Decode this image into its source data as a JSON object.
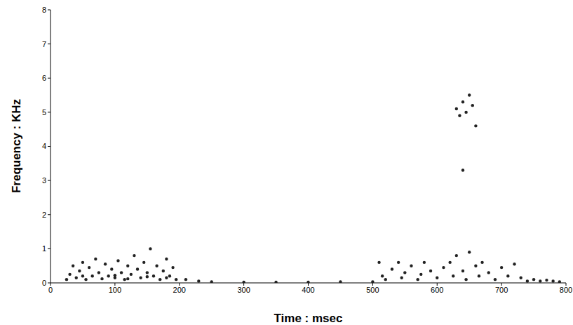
{
  "chart_data": {
    "type": "scatter",
    "x_label": "Time : msec",
    "y_label": "Frequency : KHz",
    "x": [
      25,
      30,
      35,
      40,
      45,
      50,
      55,
      60,
      65,
      70,
      75,
      80,
      85,
      90,
      95,
      100,
      105,
      110,
      115,
      120,
      125,
      130,
      135,
      140,
      145,
      150,
      155,
      160,
      165,
      170,
      175,
      180,
      185,
      190,
      195,
      210,
      230,
      50,
      100,
      150,
      120,
      180,
      250,
      300,
      350,
      400,
      450,
      500,
      510,
      515,
      520,
      530,
      540,
      545,
      550,
      560,
      570,
      575,
      580,
      590,
      600,
      610,
      620,
      625,
      630,
      640,
      645,
      650,
      660,
      665,
      670,
      680,
      690,
      700,
      710,
      720,
      730,
      740,
      750,
      760,
      770,
      780,
      790,
      630,
      640,
      645,
      650,
      655,
      660,
      635,
      640
    ],
    "values": [
      0.1,
      0.25,
      0.5,
      0.15,
      0.35,
      0.6,
      0.1,
      0.45,
      0.2,
      0.7,
      0.3,
      0.12,
      0.55,
      0.2,
      0.4,
      0.15,
      0.65,
      0.3,
      0.1,
      0.5,
      0.25,
      0.8,
      0.4,
      0.15,
      0.6,
      0.3,
      1.0,
      0.2,
      0.5,
      0.1,
      0.35,
      0.7,
      0.2,
      0.45,
      0.1,
      0.1,
      0.05,
      0.2,
      0.22,
      0.18,
      0.12,
      0.15,
      0.03,
      0.02,
      0.02,
      0.02,
      0.03,
      0.03,
      0.6,
      0.2,
      0.1,
      0.4,
      0.6,
      0.15,
      0.3,
      0.5,
      0.1,
      0.25,
      0.6,
      0.35,
      0.15,
      0.45,
      0.6,
      0.2,
      0.8,
      0.35,
      0.1,
      0.9,
      0.5,
      0.2,
      0.6,
      0.3,
      0.1,
      0.45,
      0.2,
      0.55,
      0.15,
      0.05,
      0.1,
      0.05,
      0.08,
      0.05,
      0.03,
      5.1,
      5.3,
      5.0,
      5.5,
      5.2,
      4.6,
      4.9,
      3.3
    ],
    "color": "#222222",
    "marker": "dot",
    "xlim": [
      0,
      800
    ],
    "ylim": [
      0,
      8
    ],
    "xticks": [
      0,
      100,
      200,
      300,
      400,
      500,
      600,
      700,
      800
    ],
    "yticks": [
      0,
      1,
      2,
      3,
      4,
      5,
      6,
      7,
      8
    ],
    "grid": false
  }
}
